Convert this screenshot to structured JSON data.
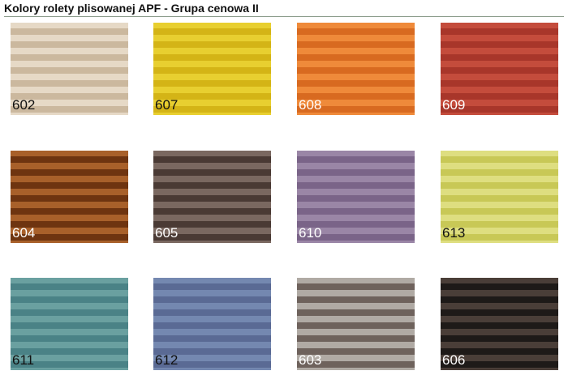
{
  "title": "Kolory rolety plisowanej APF - Grupa cenowa II",
  "swatches": [
    {
      "code": "602",
      "light": "#e6d9c6",
      "dark": "#cbb89e",
      "text": "#111111"
    },
    {
      "code": "607",
      "light": "#e8cf30",
      "dark": "#d4b416",
      "text": "#111111"
    },
    {
      "code": "608",
      "light": "#ef8a3a",
      "dark": "#d86a20",
      "text": "#ffffff"
    },
    {
      "code": "609",
      "light": "#c44c3c",
      "dark": "#a8362a",
      "text": "#ffffff"
    },
    {
      "code": "604",
      "light": "#a8602a",
      "dark": "#6e3410",
      "text": "#ffffff"
    },
    {
      "code": "605",
      "light": "#7a6860",
      "dark": "#4a3a34",
      "text": "#ffffff"
    },
    {
      "code": "610",
      "light": "#9a86a6",
      "dark": "#7a6488",
      "text": "#ffffff"
    },
    {
      "code": "613",
      "light": "#dede80",
      "dark": "#c8c856",
      "text": "#111111"
    },
    {
      "code": "611",
      "light": "#6aa0a0",
      "dark": "#4a8286",
      "text": "#111111"
    },
    {
      "code": "612",
      "light": "#7488b0",
      "dark": "#5a6a94",
      "text": "#111111"
    },
    {
      "code": "603",
      "light": "#b0aaa4",
      "dark": "#6e625c",
      "text": "#ffffff"
    },
    {
      "code": "606",
      "light": "#4a3e38",
      "dark": "#1e1a18",
      "text": "#ffffff"
    }
  ]
}
